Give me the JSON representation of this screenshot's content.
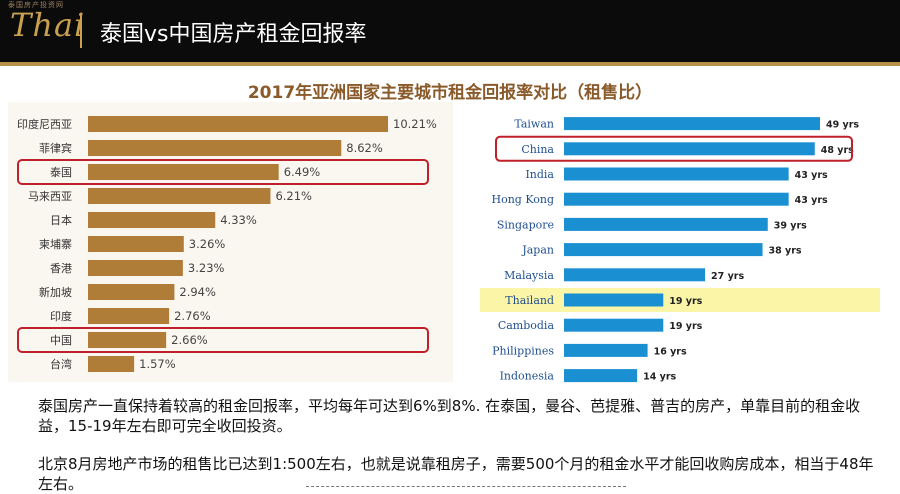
{
  "header": {
    "logo_text": "Thai",
    "logo_sub": "泰国房产投资网",
    "title": "泰国vs中国房产租金回报率"
  },
  "chart_title": "2017年亚洲国家主要城市租金回报率对比（租售比）",
  "colors": {
    "header_bg": "#0b0b0b",
    "gold": "#b89048",
    "left_bar": "#b07d38",
    "right_bar": "#1a8fd2",
    "highlight_box": "#c0202a",
    "thailand_highlight": "#fbf5a8"
  },
  "chart_data": [
    {
      "type": "bar",
      "orientation": "horizontal",
      "categories": [
        "印度尼西亚",
        "菲律宾",
        "泰国",
        "马来西亚",
        "日本",
        "柬埔寨",
        "香港",
        "新加坡",
        "印度",
        "中国",
        "台湾"
      ],
      "values": [
        10.21,
        8.62,
        6.49,
        6.21,
        4.33,
        3.26,
        3.23,
        2.94,
        2.76,
        2.66,
        1.57
      ],
      "value_labels": [
        "10.21%",
        "8.62%",
        "6.49%",
        "6.21%",
        "4.33%",
        "3.26%",
        "3.23%",
        "2.94%",
        "2.76%",
        "2.66%",
        "1.57%"
      ],
      "highlighted": [
        "泰国",
        "中国"
      ],
      "xlim": [
        0,
        11
      ],
      "grid": false,
      "legend": "none"
    },
    {
      "type": "bar",
      "orientation": "horizontal",
      "categories": [
        "Taiwan",
        "China",
        "India",
        "Hong Kong",
        "Singapore",
        "Japan",
        "Malaysia",
        "Thailand",
        "Cambodia",
        "Philippines",
        "Indonesia"
      ],
      "values": [
        49,
        48,
        43,
        43,
        39,
        38,
        27,
        19,
        19,
        16,
        14
      ],
      "value_labels": [
        "49 yrs",
        "48 yrs",
        "43 yrs",
        "43 yrs",
        "39 yrs",
        "38 yrs",
        "27 yrs",
        "19 yrs",
        "19 yrs",
        "16 yrs",
        "14 yrs"
      ],
      "highlighted": [
        "China"
      ],
      "row_highlighted": [
        "Thailand"
      ],
      "xlim": [
        0,
        52
      ],
      "grid": false,
      "legend": "none"
    }
  ],
  "paragraphs": [
    "泰国房产一直保持着较高的租金回报率，平均每年可达到6%到8%. 在泰国，曼谷、芭提雅、普吉的房产，单靠目前的租金收益，15-19年左右即可完全收回投资。",
    "北京8月房地产市场的租售比已达到1:500左右，也就是说靠租房子，需要500个月的租金水平才能回收购房成本，相当于48年左右。"
  ]
}
